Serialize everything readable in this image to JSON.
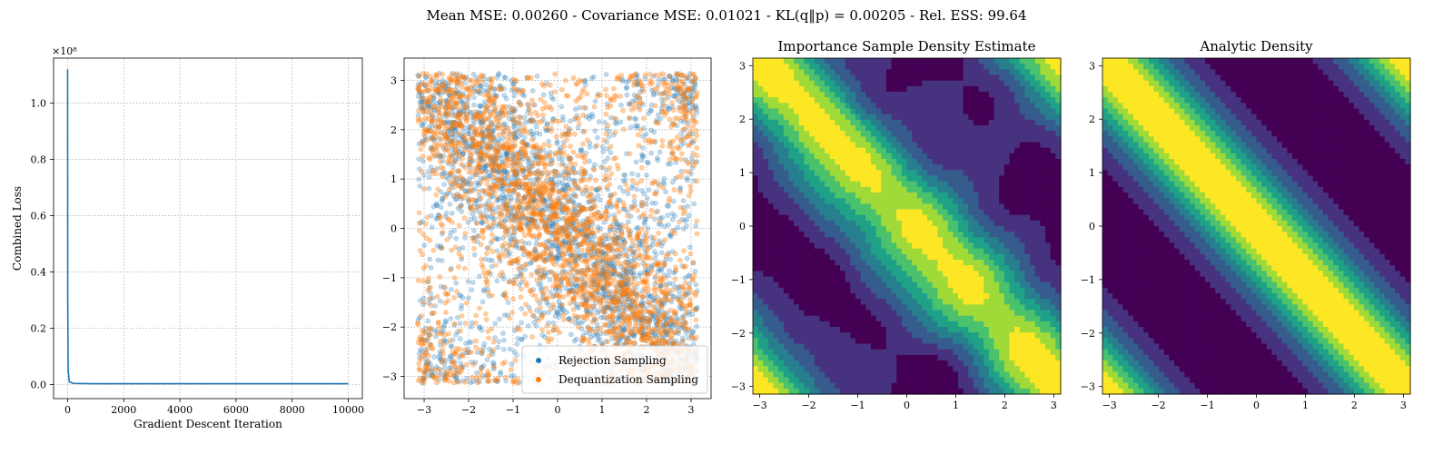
{
  "figure": {
    "suptitle": "Mean MSE: 0.00260 - Covariance MSE: 0.01021 - KL(q‖p) = 0.00205 - Rel. ESS: 99.64"
  },
  "colors": {
    "loss_line": "#1f77b4",
    "rejection": "#1f77b4",
    "dequantization": "#ff7f0e",
    "grid": "#b0b0b0",
    "viridis": [
      "#440154",
      "#46327e",
      "#365c8d",
      "#277f8e",
      "#1fa187",
      "#4ac16d",
      "#a0da39",
      "#fde725"
    ]
  },
  "chart_data": [
    {
      "id": "loss",
      "type": "line",
      "title": "",
      "xlabel": "Gradient Descent Iteration",
      "ylabel": "Combined Loss",
      "offset_text": "×10⁸",
      "xlim": [
        -500,
        10500
      ],
      "ylim": [
        -0.05,
        1.16
      ],
      "xticks": [
        0,
        2000,
        4000,
        6000,
        8000,
        10000
      ],
      "xtick_labels": [
        "0",
        "2000",
        "4000",
        "6000",
        "8000",
        "10000"
      ],
      "yticks": [
        0.0,
        0.2,
        0.4,
        0.6,
        0.8,
        1.0
      ],
      "ytick_labels": [
        "0.0",
        "0.2",
        "0.4",
        "0.6",
        "0.8",
        "1.0"
      ],
      "grid": true,
      "series": [
        {
          "x": [
            0,
            1,
            5,
            20,
            60,
            200,
            1000,
            5000,
            10000
          ],
          "y": [
            1.12,
            0.9,
            0.3,
            0.05,
            0.01,
            0.004,
            0.003,
            0.003,
            0.003
          ]
        }
      ]
    },
    {
      "id": "samples",
      "type": "scatter",
      "title": "",
      "xlim": [
        -3.45,
        3.45
      ],
      "ylim": [
        -3.45,
        3.45
      ],
      "xticks": [
        -3,
        -2,
        -1,
        0,
        1,
        2,
        3
      ],
      "xtick_labels": [
        "−3",
        "−2",
        "−1",
        "0",
        "1",
        "2",
        "3"
      ],
      "yticks": [
        -3,
        -2,
        -1,
        0,
        1,
        2,
        3
      ],
      "ytick_labels": [
        "−3",
        "−2",
        "−1",
        "0",
        "1",
        "2",
        "3"
      ],
      "grid": true,
      "legend_position": "bottom-right",
      "series": [
        {
          "name": "Rejection Sampling",
          "distribution": "density concentrated along band x + y ≈ 0 (wrapping at ±π)",
          "domain": [
            -3.14159,
            3.14159
          ],
          "count": 2600
        },
        {
          "name": "Dequantization Sampling",
          "distribution": "density concentrated along band x + y ≈ 0 (wrapping at ±π)",
          "domain": [
            -3.14159,
            3.14159
          ],
          "count": 2600
        }
      ]
    },
    {
      "id": "is_density",
      "type": "heatmap",
      "title": "Importance Sample Density Estimate",
      "xlim": [
        -3.14159,
        3.14159
      ],
      "ylim": [
        -3.14159,
        3.14159
      ],
      "xticks": [
        -3,
        -2,
        -1,
        0,
        1,
        2,
        3
      ],
      "xtick_labels": [
        "−3",
        "−2",
        "−1",
        "0",
        "1",
        "2",
        "3"
      ],
      "yticks": [
        -3,
        -2,
        -1,
        0,
        1,
        2,
        3
      ],
      "ytick_labels": [
        "−3",
        "−2",
        "−1",
        "0",
        "1",
        "2",
        "3"
      ],
      "levels": 8,
      "colormap": "viridis",
      "grid": false,
      "description": "noisy filled contours of a wrapped diagonal band with peak along x + y ≈ 0"
    },
    {
      "id": "analytic_density",
      "type": "heatmap",
      "title": "Analytic Density",
      "xlim": [
        -3.14159,
        3.14159
      ],
      "ylim": [
        -3.14159,
        3.14159
      ],
      "xticks": [
        -3,
        -2,
        -1,
        0,
        1,
        2,
        3
      ],
      "xtick_labels": [
        "−3",
        "−2",
        "−1",
        "0",
        "1",
        "2",
        "3"
      ],
      "yticks": [
        -3,
        -2,
        -1,
        0,
        1,
        2,
        3
      ],
      "ytick_labels": [
        "−3",
        "−2",
        "−1",
        "0",
        "1",
        "2",
        "3"
      ],
      "levels": 8,
      "colormap": "viridis",
      "grid": false,
      "description": "smooth filled contours of density exp(cos(x + y))"
    }
  ]
}
